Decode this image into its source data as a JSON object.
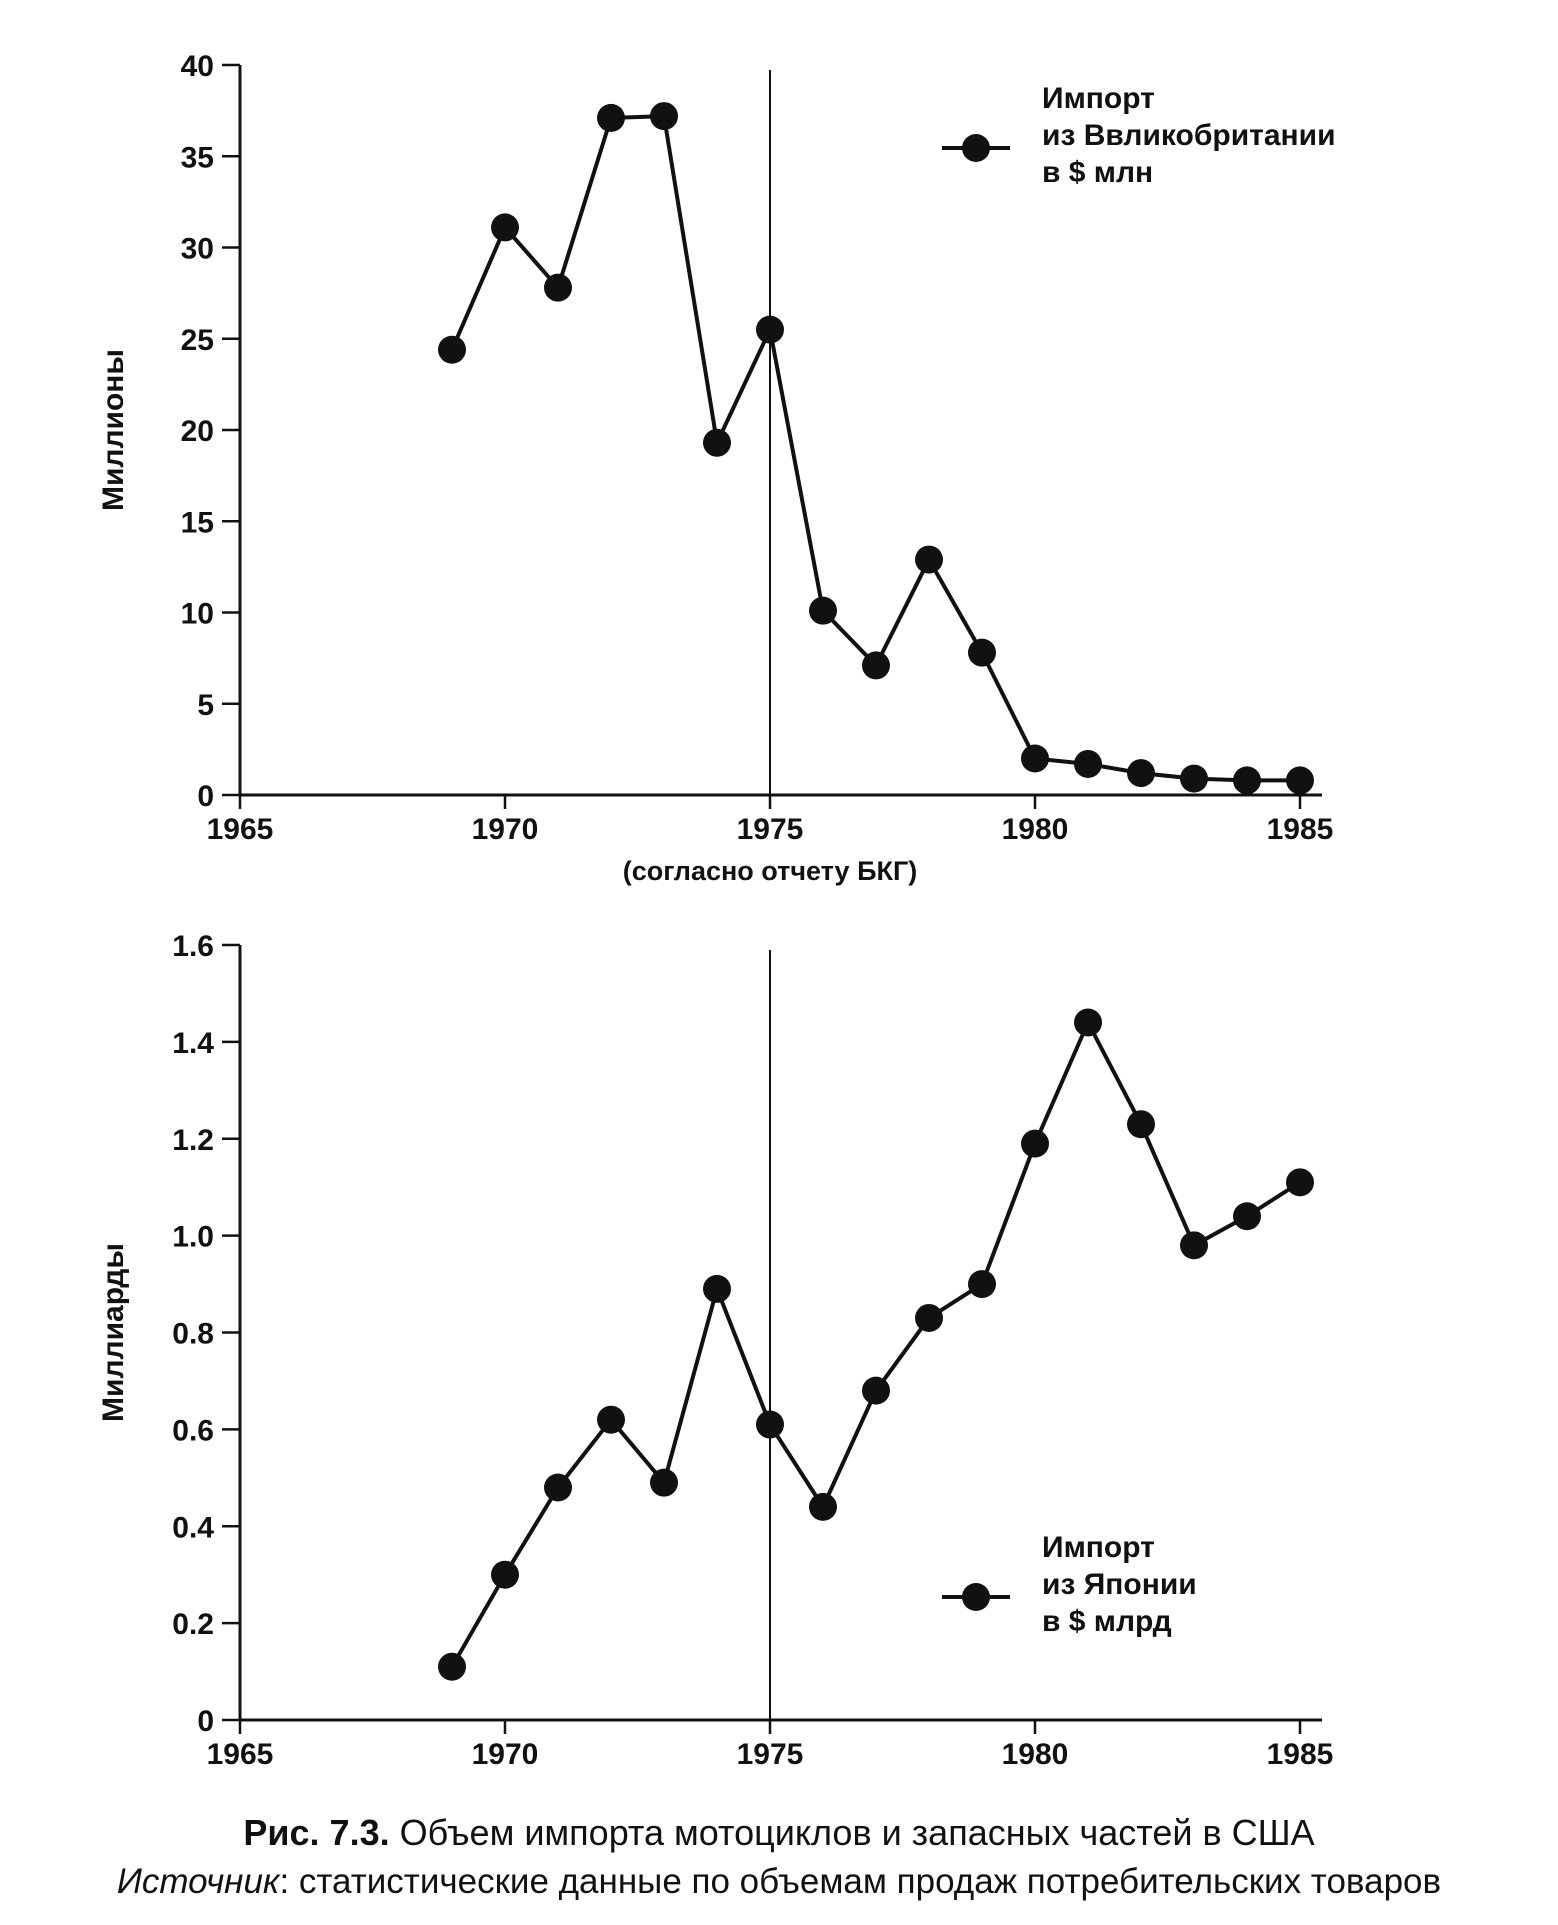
{
  "chart_data": [
    {
      "type": "line",
      "ylabel": "Миллионы",
      "xlabel": "(согласно отчету БКГ)",
      "xlim": [
        1965,
        1985
      ],
      "ylim": [
        0,
        40
      ],
      "x_ticks": [
        1965,
        1970,
        1975,
        1980,
        1985
      ],
      "y_ticks": [
        0,
        5,
        10,
        15,
        20,
        25,
        30,
        35,
        40
      ],
      "y_tick_labels": [
        "0",
        "5",
        "10",
        "15",
        "20",
        "25",
        "30",
        "35",
        "40"
      ],
      "reference_line_x": 1975,
      "legend": {
        "lines": [
          "Импорт",
          "из Ввликобритании",
          "в $ млн"
        ],
        "placement": "top-right"
      },
      "series": [
        {
          "x": [
            1969,
            1970,
            1971,
            1972,
            1973,
            1974,
            1975,
            1976,
            1977,
            1978,
            1979,
            1980,
            1981,
            1982,
            1983,
            1984,
            1985
          ],
          "values": [
            24.4,
            31.1,
            27.8,
            37.1,
            37.2,
            19.3,
            25.5,
            10.1,
            7.1,
            12.9,
            7.8,
            2.0,
            1.7,
            1.2,
            0.9,
            0.8,
            0.8
          ]
        }
      ]
    },
    {
      "type": "line",
      "ylabel": "Миллиарды",
      "xlabel": "",
      "xlim": [
        1965,
        1985
      ],
      "ylim": [
        0,
        1.6
      ],
      "x_ticks": [
        1965,
        1970,
        1975,
        1980,
        1985
      ],
      "y_ticks": [
        0,
        0.2,
        0.4,
        0.6,
        0.8,
        1.0,
        1.2,
        1.4,
        1.6
      ],
      "y_tick_labels": [
        "0",
        "0.2",
        "0.4",
        "0.6",
        "0.8",
        "1.0",
        "1.2",
        "1.4",
        "1.6"
      ],
      "reference_line_x": 1975,
      "legend": {
        "lines": [
          "Импорт",
          "из Японии",
          "в $ млрд"
        ],
        "placement": "bottom-right"
      },
      "series": [
        {
          "x": [
            1969,
            1970,
            1971,
            1972,
            1973,
            1974,
            1975,
            1976,
            1977,
            1978,
            1979,
            1980,
            1981,
            1982,
            1983,
            1984,
            1985
          ],
          "values": [
            0.11,
            0.3,
            0.48,
            0.62,
            0.49,
            0.89,
            0.61,
            0.44,
            0.68,
            0.83,
            0.9,
            1.19,
            1.44,
            1.23,
            0.98,
            1.04,
            1.11
          ]
        }
      ]
    }
  ],
  "caption": {
    "figure_number": "Рис. 7.3.",
    "figure_title": "Объем импорта мотоциклов и запасных частей в США",
    "source_label": "Источник",
    "source_text": ": статистические данные по объемам продаж потребительских товаров"
  }
}
